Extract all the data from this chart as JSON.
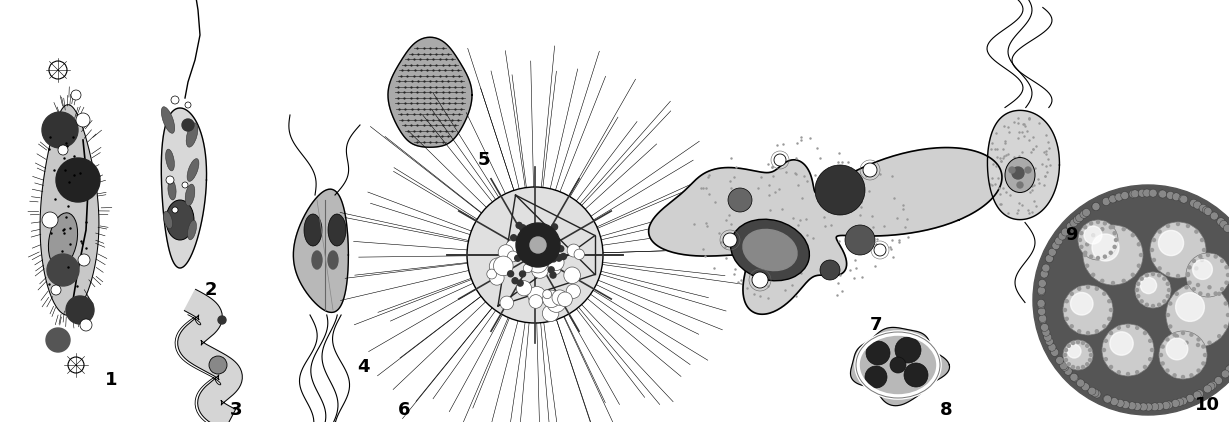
{
  "background_color": "#ffffff",
  "figure_width": 12.29,
  "figure_height": 4.22,
  "dpi": 100,
  "label_fontsize": 13
}
